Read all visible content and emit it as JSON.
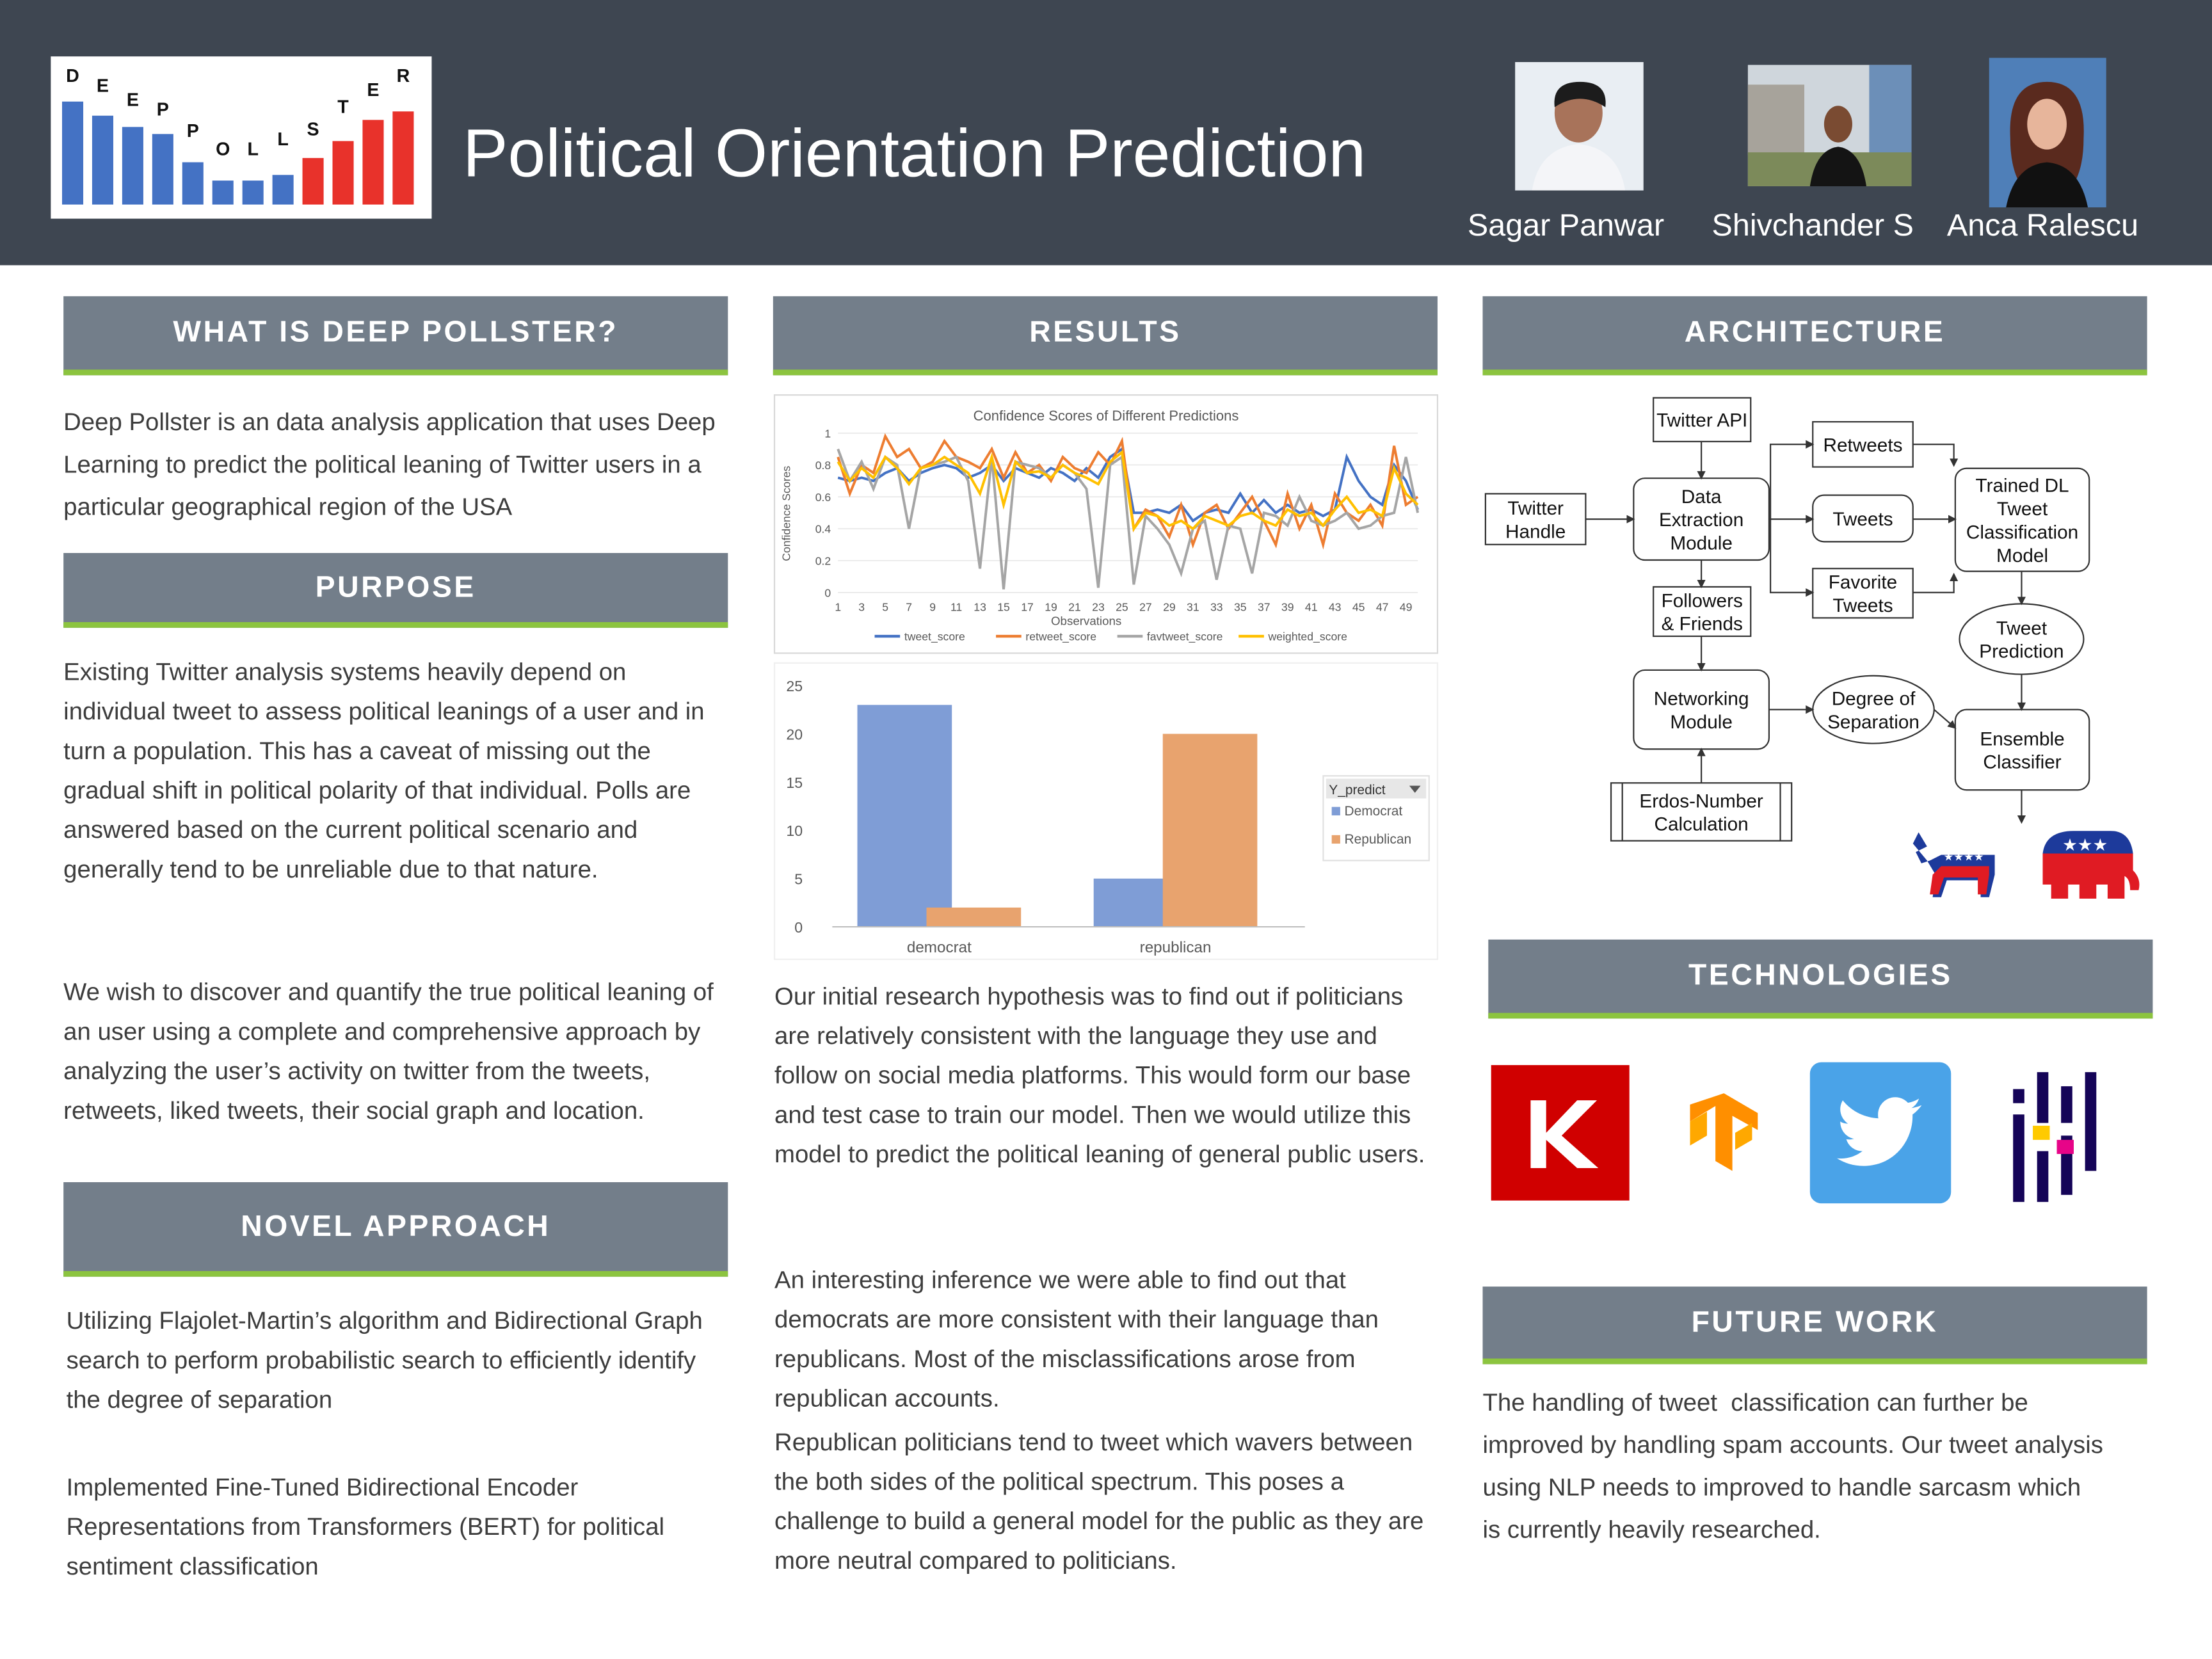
{
  "header": {
    "logo_letters": [
      "D",
      "E",
      "E",
      "P",
      "P",
      "O",
      "L",
      "L",
      "S",
      "T",
      "E",
      "R"
    ],
    "title": "Political Orientation Prediction",
    "authors": [
      "Sagar Panwar",
      "Shivchander S",
      "Anca Ralescu"
    ]
  },
  "what_is": {
    "heading": "WHAT IS DEEP POLLSTER?",
    "paragraphs": [
      "Deep Pollster is an data analysis application that uses Deep Learning to predict the political leaning of Twitter users in a particular geographical region of the USA"
    ]
  },
  "purpose": {
    "heading": "PURPOSE",
    "paragraphs": [
      "Existing Twitter analysis systems heavily depend on individual tweet to assess political leanings of a user and in turn a population. This has a caveat of missing out the gradual shift in political polarity of that individual. Polls are answered based on the current political scenario and generally tend to be unreliable due to that nature.",
      "We wish to discover and quantify the true political leaning of an user using a complete and comprehensive approach by analyzing the user’s activity on twitter from the tweets, retweets, liked tweets, their social graph and location."
    ]
  },
  "novel_approach": {
    "heading": "NOVEL APPROACH",
    "paragraphs": [
      "Utilizing Flajolet-Martin’s algorithm and Bidirectional Graph search to perform probabilistic search to efficiently identify the degree of separation",
      "Implemented Fine-Tuned Bidirectional Encoder Representations from Transformers (BERT) for political sentiment classification"
    ]
  },
  "results": {
    "heading": "RESULTS",
    "paragraphs": [
      "Our initial research hypothesis was to find out if politicians are relatively consistent with the language they use and follow on social media platforms. This would form our base and test case to train our model. Then we would utilize this model to predict the political leaning of general public users.",
      "An interesting inference we were able to find out that democrats are more consistent with their language than republicans. Most of the misclassifications arose from republican accounts.",
      "Republican politicians tend to tweet which wavers between the both sides of the political spectrum. This poses a challenge to build a general model for the public as they are more neutral compared to politicians."
    ]
  },
  "architecture": {
    "heading": "ARCHITECTURE",
    "nodes": [
      {
        "lines": [
          "Twitter API"
        ]
      },
      {
        "lines": [
          "Twitter",
          "Handle"
        ]
      },
      {
        "lines": [
          "Data",
          "Extraction",
          "Module"
        ]
      },
      {
        "lines": [
          "Retweets"
        ]
      },
      {
        "lines": [
          "Tweets"
        ]
      },
      {
        "lines": [
          "Favorite",
          "Tweets"
        ]
      },
      {
        "lines": [
          "Trained DL",
          "Tweet",
          "Classification",
          "Model"
        ]
      },
      {
        "lines": [
          "Tweet",
          "Prediction"
        ]
      },
      {
        "lines": [
          "Followers",
          "& Friends"
        ]
      },
      {
        "lines": [
          "Networking",
          "Module"
        ]
      },
      {
        "lines": [
          "Degree of",
          "Separation"
        ]
      },
      {
        "lines": [
          "Ensemble",
          "Classifier"
        ]
      },
      {
        "lines": [
          "Erdos-Number",
          "Calculation"
        ]
      }
    ]
  },
  "technologies": {
    "heading": "TECHNOLOGIES"
  },
  "future_work": {
    "heading": "FUTURE WORK",
    "paragraphs": [
      "The handling of tweet  classification can further be improved by handling spam accounts. Our tweet analysis using NLP needs to improved to handle sarcasm which is currently heavily researched."
    ]
  },
  "chart_data": [
    {
      "type": "line",
      "title": "Confidence Scores of Different Predictions",
      "x_label": "Observations",
      "y_label": "Confidence Scores",
      "x": [
        1,
        2,
        3,
        4,
        5,
        6,
        7,
        8,
        9,
        10,
        11,
        12,
        13,
        14,
        15,
        16,
        17,
        18,
        19,
        20,
        21,
        22,
        23,
        24,
        25,
        26,
        27,
        28,
        29,
        30,
        31,
        32,
        33,
        34,
        35,
        36,
        37,
        38,
        39,
        40,
        41,
        42,
        43,
        44,
        45,
        46,
        47,
        48,
        49,
        50
      ],
      "xlim": [
        1,
        50
      ],
      "xticks": [
        1,
        3,
        5,
        7,
        9,
        11,
        13,
        15,
        17,
        19,
        21,
        23,
        25,
        27,
        29,
        31,
        33,
        35,
        37,
        39,
        41,
        43,
        45,
        47,
        49
      ],
      "ylim": [
        0,
        1
      ],
      "yticks": [
        0,
        0.2,
        0.4,
        0.6,
        0.8,
        1
      ],
      "grid": true,
      "series": [
        {
          "name": "tweet_score",
          "color": "#4472c4",
          "values": [
            0.72,
            0.7,
            0.72,
            0.7,
            0.75,
            0.78,
            0.7,
            0.75,
            0.78,
            0.8,
            0.78,
            0.72,
            0.75,
            0.8,
            0.7,
            0.78,
            0.75,
            0.72,
            0.78,
            0.75,
            0.7,
            0.78,
            0.72,
            0.85,
            0.9,
            0.5,
            0.5,
            0.52,
            0.5,
            0.55,
            0.45,
            0.5,
            0.52,
            0.5,
            0.62,
            0.5,
            0.58,
            0.5,
            0.55,
            0.5,
            0.52,
            0.48,
            0.52,
            0.85,
            0.7,
            0.6,
            0.55,
            0.8,
            0.7,
            0.52
          ]
        },
        {
          "name": "retweet_score",
          "color": "#ed7d31",
          "values": [
            0.85,
            0.62,
            0.8,
            0.75,
            0.98,
            0.85,
            0.9,
            0.78,
            0.82,
            0.95,
            0.85,
            0.82,
            0.78,
            0.9,
            0.72,
            0.88,
            0.75,
            0.8,
            0.7,
            0.85,
            0.78,
            0.75,
            0.88,
            0.8,
            0.95,
            0.4,
            0.52,
            0.48,
            0.35,
            0.55,
            0.3,
            0.5,
            0.55,
            0.4,
            0.5,
            0.6,
            0.45,
            0.3,
            0.62,
            0.4,
            0.55,
            0.3,
            0.62,
            0.5,
            0.45,
            0.55,
            0.42,
            0.92,
            0.55,
            0.6
          ]
        },
        {
          "name": "favtweet_score",
          "color": "#a5a5a5",
          "values": [
            0.9,
            0.7,
            0.82,
            0.65,
            0.85,
            0.8,
            0.4,
            0.78,
            0.8,
            0.82,
            0.85,
            0.7,
            0.15,
            0.85,
            0.02,
            0.82,
            0.8,
            0.78,
            0.72,
            0.8,
            0.75,
            0.65,
            0.03,
            0.8,
            0.85,
            0.05,
            0.48,
            0.4,
            0.3,
            0.12,
            0.4,
            0.45,
            0.08,
            0.42,
            0.4,
            0.12,
            0.5,
            0.48,
            0.42,
            0.6,
            0.45,
            0.42,
            0.45,
            0.5,
            0.4,
            0.42,
            0.48,
            0.5,
            0.85,
            0.5
          ]
        },
        {
          "name": "weighted_score",
          "color": "#ffc000",
          "values": [
            0.82,
            0.7,
            0.78,
            0.72,
            0.85,
            0.78,
            0.68,
            0.78,
            0.8,
            0.85,
            0.8,
            0.75,
            0.62,
            0.85,
            0.55,
            0.82,
            0.75,
            0.76,
            0.72,
            0.8,
            0.75,
            0.72,
            0.68,
            0.82,
            0.88,
            0.4,
            0.5,
            0.48,
            0.42,
            0.45,
            0.4,
            0.48,
            0.45,
            0.42,
            0.48,
            0.5,
            0.45,
            0.42,
            0.52,
            0.48,
            0.5,
            0.42,
            0.52,
            0.6,
            0.5,
            0.52,
            0.48,
            0.78,
            0.62,
            0.55
          ]
        }
      ]
    },
    {
      "type": "bar",
      "categories": [
        "democrat",
        "republican"
      ],
      "ylim": [
        0,
        25
      ],
      "yticks": [
        0,
        5,
        10,
        15,
        20,
        25
      ],
      "grid": false,
      "legend_title": "Y_predict",
      "series": [
        {
          "name": "Democrat",
          "color": "#7f9dd6",
          "values": [
            23,
            5
          ]
        },
        {
          "name": "Republican",
          "color": "#e8a36e",
          "values": [
            2,
            20
          ]
        }
      ]
    }
  ]
}
